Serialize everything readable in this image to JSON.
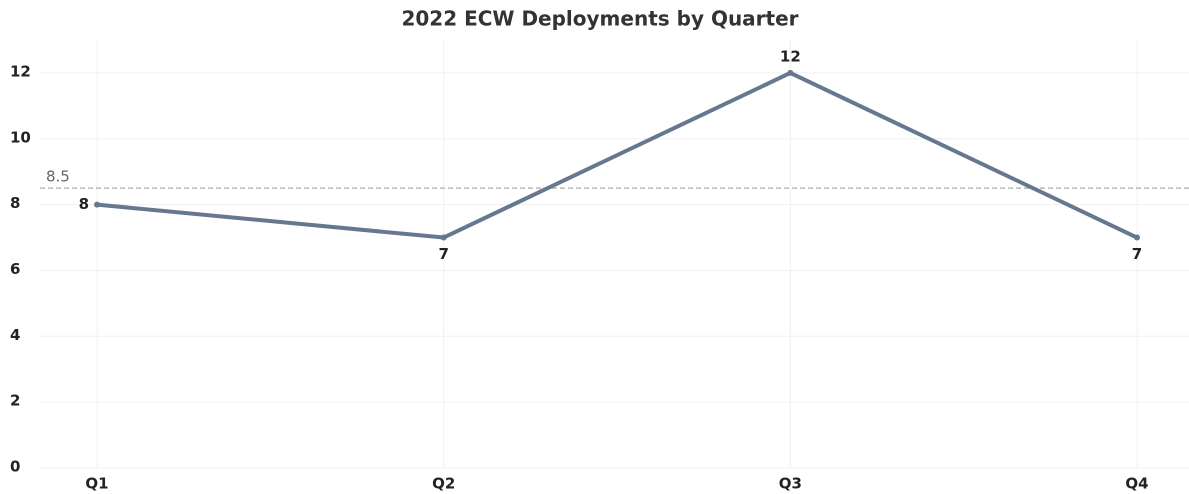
{
  "chart_data": {
    "type": "line",
    "title": "2022 ECW Deployments by Quarter",
    "categories": [
      "Q1",
      "Q2",
      "Q3",
      "Q4"
    ],
    "values": [
      8,
      7,
      12,
      7
    ],
    "color": "#66788f",
    "ylim": [
      0,
      13
    ],
    "yticks": [
      0,
      2,
      4,
      6,
      8,
      10,
      12
    ],
    "grid": true,
    "reference_line": {
      "value": 8.5,
      "color": "#aaaaaa"
    }
  }
}
